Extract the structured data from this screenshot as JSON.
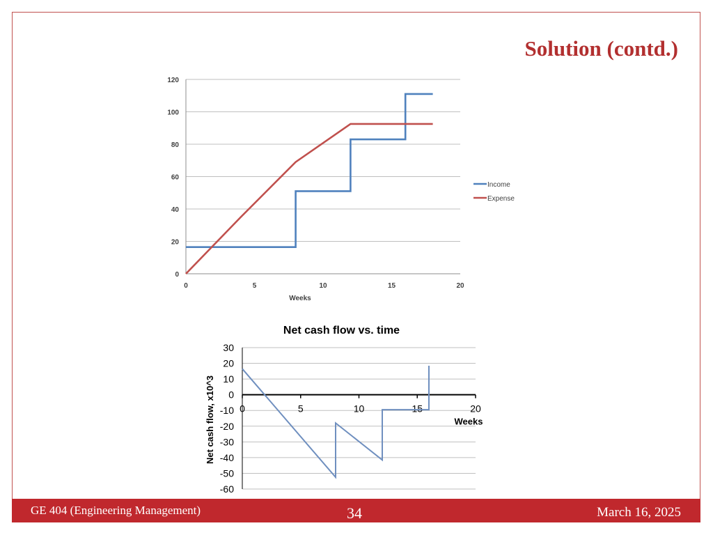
{
  "slide": {
    "title": "Solution (contd.)"
  },
  "footer": {
    "course": "GE 404 (Engineering Management)",
    "page_number": "34",
    "date": "March 16, 2025"
  },
  "colors": {
    "accent": "#c0282d",
    "title": "#b22f2f",
    "income": "#4f81bd",
    "expense": "#c0504d",
    "netflow": "#6f8fbf",
    "grid": "#bfbfbf"
  },
  "chart_data": [
    {
      "type": "line",
      "title": "",
      "xlabel": "Weeks",
      "ylabel": "",
      "xlim": [
        0,
        20
      ],
      "ylim": [
        0,
        120
      ],
      "xticks": [
        0,
        5,
        10,
        15,
        20
      ],
      "yticks": [
        0,
        20,
        40,
        60,
        80,
        100,
        120
      ],
      "grid": true,
      "legend_position": "right",
      "series": [
        {
          "name": "Income",
          "color": "#4f81bd",
          "x": [
            0,
            8,
            8,
            12,
            12,
            16,
            16,
            18
          ],
          "y": [
            16.5,
            16.5,
            51,
            51,
            83,
            83,
            111,
            111
          ]
        },
        {
          "name": "Expense",
          "color": "#c0504d",
          "x": [
            0,
            4,
            8,
            12,
            18
          ],
          "y": [
            0,
            35,
            69,
            92.5,
            92.5
          ]
        }
      ]
    },
    {
      "type": "line",
      "title": "Net cash flow vs. time",
      "xlabel": "Weeks",
      "ylabel": "Net cash flow, x10^3",
      "xlim": [
        0,
        20
      ],
      "ylim": [
        -60,
        30
      ],
      "xticks": [
        0,
        5,
        10,
        15,
        20
      ],
      "yticks": [
        30,
        20,
        10,
        0,
        -10,
        -20,
        -30,
        -40,
        -50,
        -60
      ],
      "grid": true,
      "series": [
        {
          "name": "Net cash flow",
          "color": "#6f8fbf",
          "x": [
            0,
            8,
            8,
            12,
            12,
            16,
            16
          ],
          "y": [
            16.5,
            -52.5,
            -18,
            -41.5,
            -9.5,
            -9.5,
            18.5
          ]
        }
      ]
    }
  ]
}
